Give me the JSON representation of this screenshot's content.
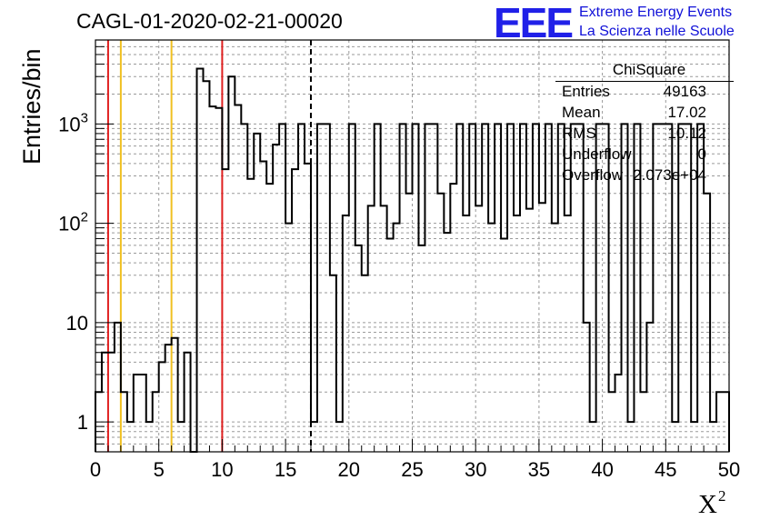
{
  "title": "CAGL-01-2020-02-21-00020",
  "logo": {
    "mark": "EEE",
    "line1": "Extreme Energy Events",
    "line2": "La Scienza nelle Scuole"
  },
  "stats": {
    "name": "ChiSquare",
    "rows": [
      {
        "label": "Entries",
        "value": "49163"
      },
      {
        "label": "Mean",
        "value": "17.02"
      },
      {
        "label": "RMS",
        "value": "10.12"
      },
      {
        "label": "Underflow",
        "value": "0"
      },
      {
        "label": "Overflow",
        "value": "2.073e+04"
      }
    ]
  },
  "chart_data": {
    "type": "histogram",
    "xlabel": "X",
    "xlabel_superscript": "2",
    "ylabel": "Entries/bin",
    "xlim": [
      0,
      50
    ],
    "ylim": [
      0.5,
      7000
    ],
    "yscale": "log",
    "grid": true,
    "legend": "stats box top-right",
    "bin_width": 0.5,
    "x_ticks": [
      "0",
      "5",
      "10",
      "15",
      "20",
      "25",
      "30",
      "35",
      "40",
      "45",
      "50"
    ],
    "y_ticks": [
      {
        "value": 1,
        "label": "1"
      },
      {
        "value": 10,
        "label": "10"
      },
      {
        "value": 100,
        "label": "10",
        "sup": "2"
      },
      {
        "value": 1000,
        "label": "10",
        "sup": "3"
      }
    ],
    "counts": [
      2,
      5,
      5,
      10,
      2,
      1,
      3,
      3,
      1,
      2,
      4,
      6,
      7,
      1,
      5,
      0,
      3600,
      2700,
      1500,
      1450,
      350,
      3000,
      1550,
      1000,
      280,
      800,
      420,
      250,
      620,
      1000,
      100,
      350,
      1000,
      400,
      1,
      1000,
      1000,
      30,
      1,
      120,
      1000,
      60,
      30,
      150,
      1000,
      150,
      70,
      100,
      1000,
      200,
      1000,
      60,
      1000,
      1000,
      200,
      80,
      250,
      1000,
      120,
      1000,
      150,
      1000,
      100,
      1000,
      70,
      1000,
      120,
      1000,
      140,
      1000,
      160,
      1000,
      100,
      1000,
      120,
      1000,
      1000,
      10,
      1,
      1000,
      1000,
      2,
      3,
      1000,
      1,
      1000,
      2,
      10,
      1000,
      1000,
      1000,
      1,
      1000,
      1000,
      1,
      1000,
      200,
      1,
      2,
      2
    ],
    "vertical_lines": [
      {
        "x": 1,
        "color": "#e02020",
        "style": "solid"
      },
      {
        "x": 2,
        "color": "#f0c020",
        "style": "solid"
      },
      {
        "x": 6,
        "color": "#f0c020",
        "style": "solid"
      },
      {
        "x": 10,
        "color": "#e02020",
        "style": "solid"
      },
      {
        "x": 17,
        "color": "#000000",
        "style": "dashed"
      }
    ]
  }
}
